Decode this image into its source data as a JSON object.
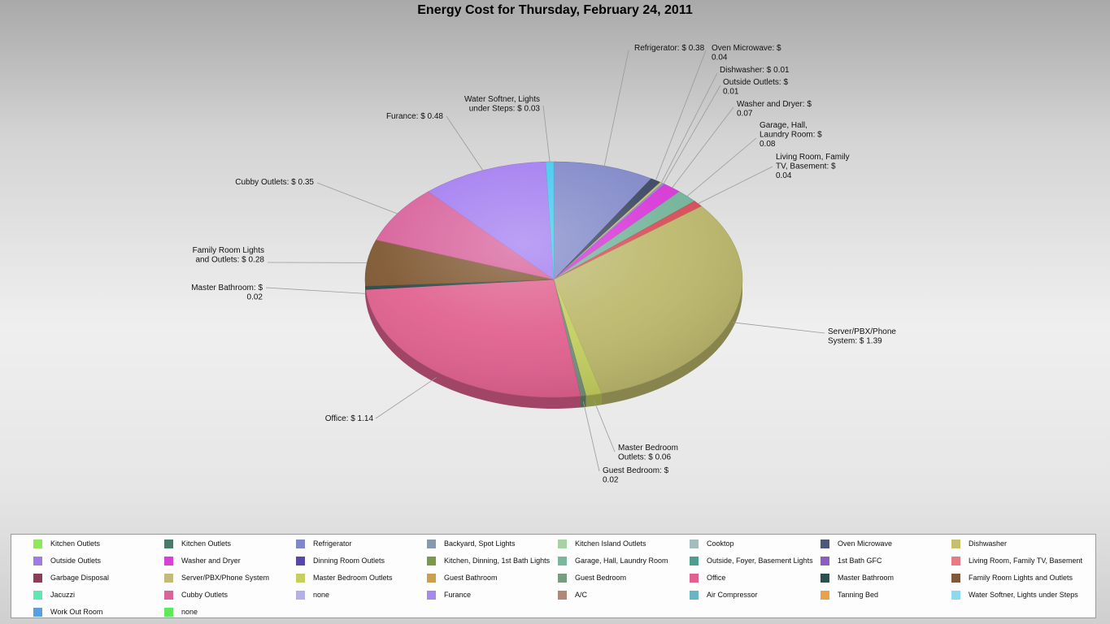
{
  "chart_data": {
    "type": "pie",
    "title": "Energy Cost for Thursday, February 24, 2011",
    "unit": "$",
    "slices": [
      {
        "name": "Refrigerator",
        "value": 0.38,
        "label": "Refrigerator: $ 0.38",
        "color": "#8088c8"
      },
      {
        "name": "Oven Microwave",
        "value": 0.04,
        "label": "Oven Microwave: $ 0.04",
        "color": "#3a4660"
      },
      {
        "name": "Dishwasher",
        "value": 0.01,
        "label": "Dishwasher: $ 0.01",
        "color": "#c6c06e"
      },
      {
        "name": "Outside Outlets",
        "value": 0.01,
        "label": "Outside Outlets: $ 0.01",
        "color": "#9d7ae0"
      },
      {
        "name": "Washer and Dryer",
        "value": 0.07,
        "label": "Washer and Dryer: $ 0.07",
        "color": "#d836d8"
      },
      {
        "name": "Garage, Hall, Laundry Room",
        "value": 0.08,
        "label": "Garage, Hall, Laundry Room: $ 0.08",
        "color": "#74b49a"
      },
      {
        "name": "Living Room, Family TV, Basement",
        "value": 0.04,
        "label": "Living Room, Family TV, Basement: $ 0.04",
        "color": "#d84c56"
      },
      {
        "name": "Server/PBX/Phone System",
        "value": 1.39,
        "label": "Server/PBX/Phone System: $ 1.39",
        "color": "#bcb86c"
      },
      {
        "name": "Master Bedroom Outlets",
        "value": 0.06,
        "label": "Master Bedroom Outlets: $ 0.06",
        "color": "#c4cf5e"
      },
      {
        "name": "Guest Bedroom",
        "value": 0.02,
        "label": "Guest Bedroom: $ 0.02",
        "color": "#6f9078"
      },
      {
        "name": "Office",
        "value": 1.14,
        "label": "Office: $ 1.14",
        "color": "#e0608e"
      },
      {
        "name": "Master Bathroom",
        "value": 0.02,
        "label": "Master Bathroom: $ 0.02",
        "color": "#244848"
      },
      {
        "name": "Family Room Lights and Outlets",
        "value": 0.28,
        "label": "Family Room Lights and Outlets: $ 0.28",
        "color": "#7e5630"
      },
      {
        "name": "Cubby Outlets",
        "value": 0.35,
        "label": "Cubby Outlets: $ 0.35",
        "color": "#d7609a"
      },
      {
        "name": "Furance",
        "value": 0.48,
        "label": "Furance: $ 0.48",
        "color": "#a27cf0"
      },
      {
        "name": "Water Softner, Lights under Steps",
        "value": 0.03,
        "label": "Water Softner, Lights under Steps: $ 0.03",
        "color": "#44c8ee"
      }
    ],
    "legend": [
      {
        "name": "Kitchen Outlets",
        "color": "#8ee85a"
      },
      {
        "name": "Kitchen Outlets",
        "color": "#4a7a68"
      },
      {
        "name": "Refrigerator",
        "color": "#8088c8"
      },
      {
        "name": "Backyard, Spot Lights",
        "color": "#8899ad"
      },
      {
        "name": "Kitchen Island Outlets",
        "color": "#a6d2a6"
      },
      {
        "name": "Cooktop",
        "color": "#a4bcbc"
      },
      {
        "name": "Oven Microwave",
        "color": "#4c5878"
      },
      {
        "name": "Dishwasher",
        "color": "#c6c06e"
      },
      {
        "name": "Outside Outlets",
        "color": "#a07ae6"
      },
      {
        "name": "Washer and Dryer",
        "color": "#d840d8"
      },
      {
        "name": "Dinning Room Outlets",
        "color": "#5846aa"
      },
      {
        "name": "Kitchen, Dinning, 1st Bath Lights",
        "color": "#7a9a4a"
      },
      {
        "name": "Garage, Hall, Laundry Room",
        "color": "#7ab89c"
      },
      {
        "name": "Outside, Foyer, Basement Lights",
        "color": "#4e9e90"
      },
      {
        "name": "1st Bath GFC",
        "color": "#8a5ec2"
      },
      {
        "name": "Living Room, Family TV, Basement",
        "color": "#e87a86"
      },
      {
        "name": "Garbage Disposal",
        "color": "#8a3e58"
      },
      {
        "name": "Server/PBX/Phone System",
        "color": "#c2bc7c"
      },
      {
        "name": "Master Bedroom Outlets",
        "color": "#c4cf5e"
      },
      {
        "name": "Guest Bathroom",
        "color": "#caa04c"
      },
      {
        "name": "Guest Bedroom",
        "color": "#789c80"
      },
      {
        "name": "Office",
        "color": "#e0608e"
      },
      {
        "name": "Master Bathroom",
        "color": "#2c5050"
      },
      {
        "name": "Family Room Lights and Outlets",
        "color": "#80583a"
      },
      {
        "name": "Jacuzzi",
        "color": "#5ee8b4"
      },
      {
        "name": "Cubby Outlets",
        "color": "#d8649a"
      },
      {
        "name": "none",
        "color": "#b4b0e6"
      },
      {
        "name": "Furance",
        "color": "#a688ee"
      },
      {
        "name": "A/C",
        "color": "#b08878"
      },
      {
        "name": "Air Compressor",
        "color": "#6ab4c4"
      },
      {
        "name": "Tanning Bed",
        "color": "#e8a24c"
      },
      {
        "name": "Water Softner, Lights under Steps",
        "color": "#8ed8f0"
      },
      {
        "name": "Work Out Room",
        "color": "#5aa0e0"
      },
      {
        "name": "none",
        "color": "#5ee85a"
      }
    ]
  }
}
